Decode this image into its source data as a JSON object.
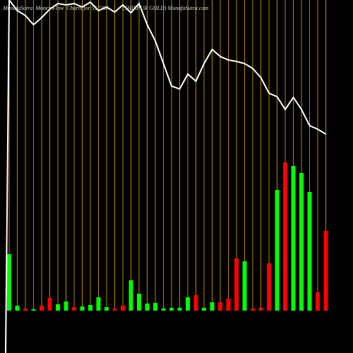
{
  "chart_data": {
    "type": "bar",
    "title": "MunafaSutra  Money Flow  Charts for 512289          (SHIRPUR GOLD) MunafaSutra.com",
    "values": [
      80,
      7,
      3,
      2,
      7,
      18,
      9,
      13,
      5,
      6,
      8,
      19,
      5,
      3,
      7,
      43,
      24,
      10,
      11,
      3,
      4,
      4,
      19,
      22,
      4,
      12,
      12,
      17,
      74,
      70,
      3,
      4,
      67,
      171,
      210,
      205,
      195,
      168,
      26,
      113
    ],
    "colors": [
      "#00ff00",
      "#00ff00",
      "#ff0000",
      "#00ff00",
      "#ff0000",
      "#ff0000",
      "#00ff00",
      "#00ff00",
      "#ff0000",
      "#00ff00",
      "#00ff00",
      "#00ff00",
      "#00ff00",
      "#ff0000",
      "#ff0000",
      "#00ff00",
      "#00ff00",
      "#00ff00",
      "#00ff00",
      "#00ff00",
      "#00ff00",
      "#00ff00",
      "#00ff00",
      "#ff0000",
      "#00ff00",
      "#00ff00",
      "#ff0000",
      "#ff0000",
      "#ff0000",
      "#00ff00",
      "#ff0000",
      "#ff0000",
      "#ff0000",
      "#00ff00",
      "#ff0000",
      "#00ff00",
      "#00ff00",
      "#00ff00",
      "#ff0000",
      "#ff0000"
    ],
    "line": {
      "color": "#ffffff",
      "axis": "y2",
      "values": [
        500,
        485,
        478,
        465,
        475,
        487,
        495,
        493,
        495,
        490,
        497,
        485,
        490,
        483,
        493,
        482,
        495,
        465,
        442,
        410,
        378,
        374,
        395,
        385,
        410,
        430,
        420,
        415,
        413,
        410,
        403,
        390,
        368,
        363,
        345,
        362,
        345,
        322,
        317,
        310
      ]
    },
    "ylim": [
      0,
      440
    ],
    "y2lim": [
      0,
      500
    ],
    "grid": true,
    "grid_color": "#b8860b"
  }
}
